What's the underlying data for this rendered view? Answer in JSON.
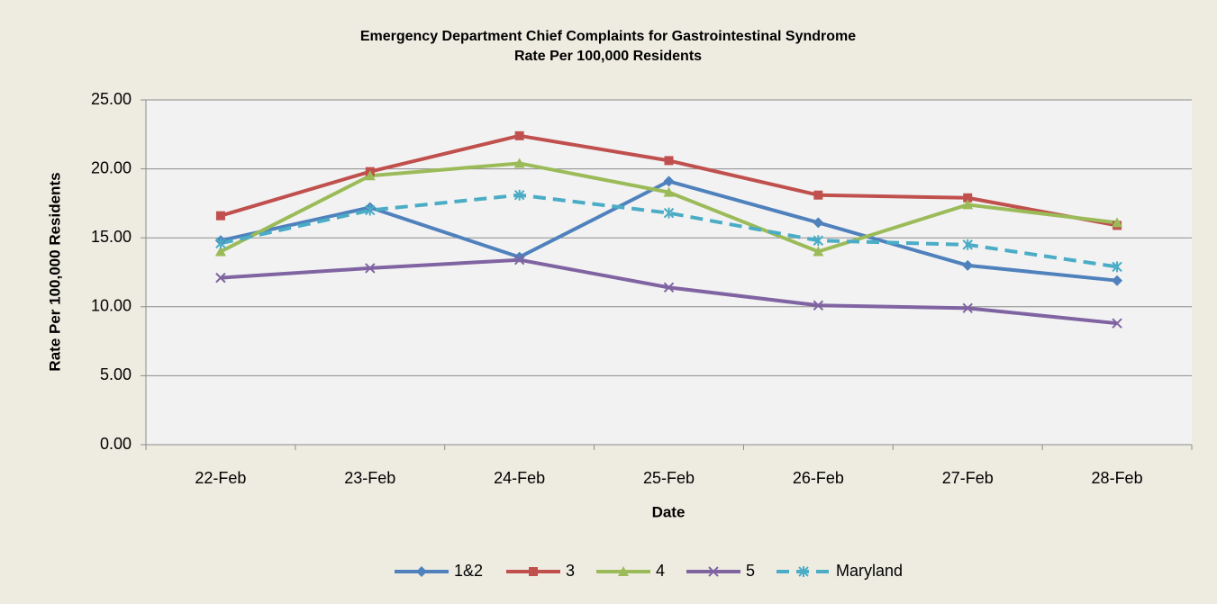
{
  "chart_data": {
    "type": "line",
    "title": [
      "Emergency Department Chief Complaints for Gastrointestinal Syndrome",
      "Rate Per 100,000 Residents"
    ],
    "x_label": "Date",
    "y_label": "Rate Per 100,000 Residents",
    "categories": [
      "22-Feb",
      "23-Feb",
      "24-Feb",
      "25-Feb",
      "26-Feb",
      "27-Feb",
      "28-Feb"
    ],
    "ylim": [
      0,
      25
    ],
    "yticks": [
      {
        "value": 0,
        "label": "0.00"
      },
      {
        "value": 5,
        "label": "5.00"
      },
      {
        "value": 10,
        "label": "10.00"
      },
      {
        "value": 15,
        "label": "15.00"
      },
      {
        "value": 20,
        "label": "20.00"
      },
      {
        "value": 25,
        "label": "25.00"
      }
    ],
    "grid": true,
    "legend": "bottom",
    "series": [
      {
        "name": "1&2",
        "color": "#4f81bd",
        "marker": "diamond",
        "dashed": false,
        "values": [
          14.8,
          17.2,
          13.6,
          19.1,
          16.1,
          13.0,
          11.9
        ]
      },
      {
        "name": "3",
        "color": "#c0504d",
        "marker": "square",
        "dashed": false,
        "values": [
          16.6,
          19.8,
          22.4,
          20.6,
          18.1,
          17.9,
          15.9
        ]
      },
      {
        "name": "4",
        "color": "#9bbb59",
        "marker": "triangle",
        "dashed": false,
        "values": [
          14.0,
          19.5,
          20.4,
          18.3,
          14.0,
          17.4,
          16.1
        ]
      },
      {
        "name": "5",
        "color": "#8064a2",
        "marker": "x",
        "dashed": false,
        "values": [
          12.1,
          12.8,
          13.4,
          11.4,
          10.1,
          9.9,
          8.8
        ]
      },
      {
        "name": "Maryland",
        "color": "#4bacc6",
        "marker": "star",
        "dashed": true,
        "values": [
          14.6,
          17.0,
          18.1,
          16.8,
          14.8,
          14.5,
          12.9
        ]
      }
    ]
  }
}
